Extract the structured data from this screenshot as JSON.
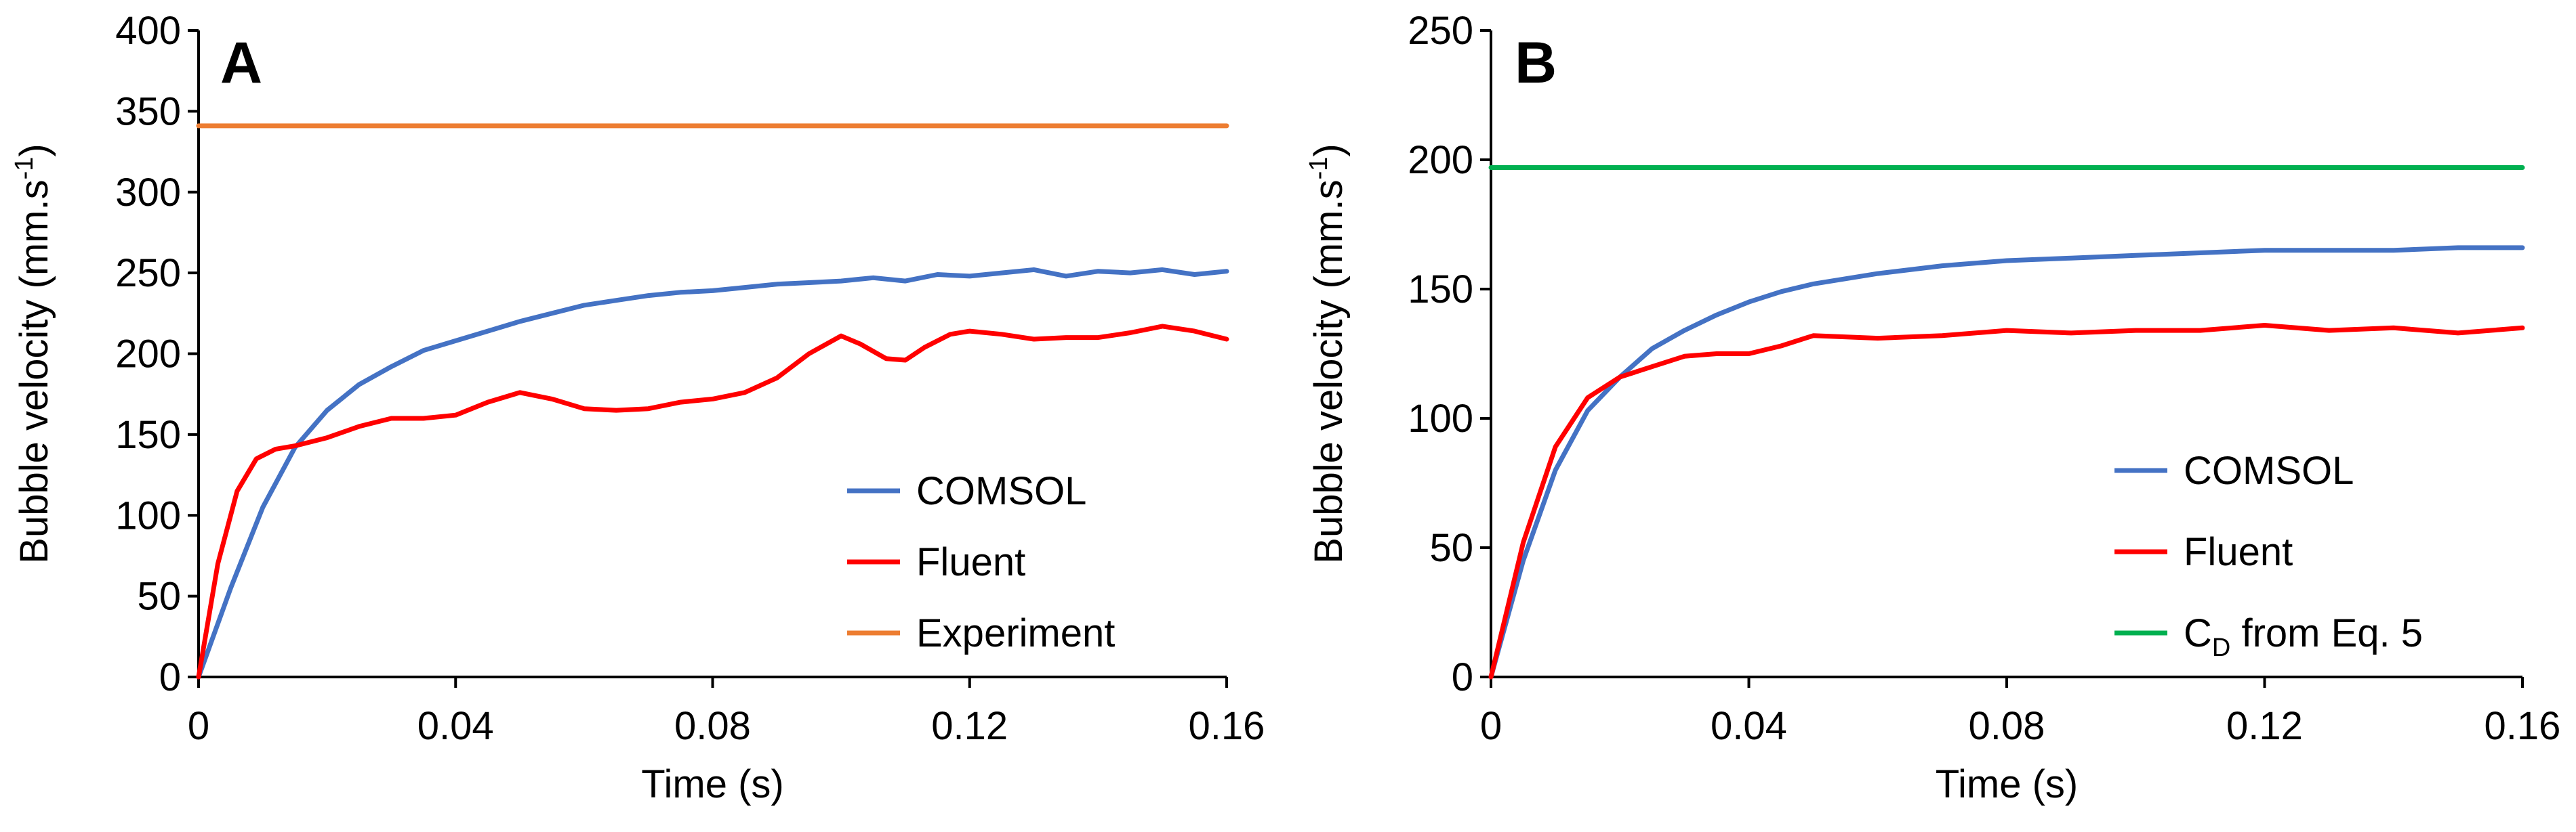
{
  "chart_data": [
    {
      "type": "line",
      "panel_label": "A",
      "xlabel": "Time (s)",
      "ylabel": "Bubble velocity (mm.s",
      "ylabel_superscript": "-1",
      "ylabel_suffix": ")",
      "xlim": [
        0,
        0.16
      ],
      "ylim": [
        0,
        400
      ],
      "x_ticks": [
        0,
        0.04,
        0.08,
        0.12,
        0.16
      ],
      "x_tick_labels": [
        "0",
        "0.04",
        "0.08",
        "0.12",
        "0.16"
      ],
      "y_ticks": [
        0,
        50,
        100,
        150,
        200,
        250,
        300,
        350,
        400
      ],
      "y_tick_labels": [
        "0",
        "50",
        "100",
        "150",
        "200",
        "250",
        "300",
        "350",
        "400"
      ],
      "grid": false,
      "legend_position": "bottom-right",
      "series": [
        {
          "name": "COMSOL",
          "color": "#4472C4",
          "x": [
            0,
            0.005,
            0.01,
            0.015,
            0.02,
            0.025,
            0.03,
            0.035,
            0.04,
            0.045,
            0.05,
            0.055,
            0.06,
            0.065,
            0.07,
            0.075,
            0.08,
            0.085,
            0.09,
            0.095,
            0.1,
            0.105,
            0.11,
            0.115,
            0.12,
            0.125,
            0.13,
            0.135,
            0.14,
            0.145,
            0.15,
            0.155,
            0.16
          ],
          "values": [
            0,
            55,
            105,
            142,
            165,
            181,
            192,
            202,
            208,
            214,
            220,
            225,
            230,
            233,
            236,
            238,
            239,
            241,
            243,
            244,
            245,
            247,
            245,
            249,
            248,
            250,
            252,
            248,
            251,
            250,
            252,
            249,
            251
          ]
        },
        {
          "name": "Fluent",
          "color": "#FF0000",
          "x": [
            0,
            0.003,
            0.006,
            0.009,
            0.012,
            0.015,
            0.02,
            0.025,
            0.03,
            0.035,
            0.04,
            0.045,
            0.05,
            0.055,
            0.06,
            0.065,
            0.07,
            0.075,
            0.08,
            0.085,
            0.09,
            0.095,
            0.1,
            0.103,
            0.107,
            0.11,
            0.113,
            0.117,
            0.12,
            0.125,
            0.13,
            0.135,
            0.14,
            0.145,
            0.15,
            0.155,
            0.16
          ],
          "values": [
            0,
            70,
            115,
            135,
            141,
            143,
            148,
            155,
            160,
            160,
            162,
            170,
            176,
            172,
            166,
            165,
            166,
            170,
            172,
            176,
            185,
            200,
            211,
            206,
            197,
            196,
            204,
            212,
            214,
            212,
            209,
            210,
            210,
            213,
            217,
            214,
            209
          ]
        },
        {
          "name": "Experiment",
          "color": "#ED7D31",
          "x": [
            0,
            0.16
          ],
          "values": [
            341,
            341
          ]
        }
      ]
    },
    {
      "type": "line",
      "panel_label": "B",
      "xlabel": "Time (s)",
      "ylabel": "Bubble velocity (mm.s",
      "ylabel_superscript": "-1",
      "ylabel_suffix": ")",
      "xlim": [
        0,
        0.16
      ],
      "ylim": [
        0,
        250
      ],
      "x_ticks": [
        0,
        0.04,
        0.08,
        0.12,
        0.16
      ],
      "x_tick_labels": [
        "0",
        "0.04",
        "0.08",
        "0.12",
        "0.16"
      ],
      "y_ticks": [
        0,
        50,
        100,
        150,
        200,
        250
      ],
      "y_tick_labels": [
        "0",
        "50",
        "100",
        "150",
        "200",
        "250"
      ],
      "grid": false,
      "legend_position": "bottom-right",
      "series": [
        {
          "name": "COMSOL",
          "color": "#4472C4",
          "x": [
            0,
            0.005,
            0.01,
            0.015,
            0.02,
            0.025,
            0.03,
            0.035,
            0.04,
            0.045,
            0.05,
            0.06,
            0.07,
            0.08,
            0.09,
            0.1,
            0.11,
            0.12,
            0.13,
            0.14,
            0.15,
            0.16
          ],
          "values": [
            0,
            45,
            80,
            103,
            116,
            127,
            134,
            140,
            145,
            149,
            152,
            156,
            159,
            161,
            162,
            163,
            164,
            165,
            165,
            165,
            166,
            166
          ]
        },
        {
          "name": "Fluent",
          "color": "#FF0000",
          "x": [
            0,
            0.005,
            0.01,
            0.015,
            0.02,
            0.025,
            0.03,
            0.035,
            0.04,
            0.045,
            0.05,
            0.06,
            0.07,
            0.08,
            0.09,
            0.1,
            0.11,
            0.12,
            0.13,
            0.14,
            0.15,
            0.16
          ],
          "values": [
            0,
            52,
            89,
            108,
            116,
            120,
            124,
            125,
            125,
            128,
            132,
            131,
            132,
            134,
            133,
            134,
            134,
            136,
            134,
            135,
            133,
            135
          ]
        },
        {
          "name": "C",
          "name_subscript": "D",
          "name_suffix": " from Eq. 5",
          "color": "#00B050",
          "x": [
            0,
            0.16
          ],
          "values": [
            197,
            197
          ]
        }
      ]
    }
  ]
}
